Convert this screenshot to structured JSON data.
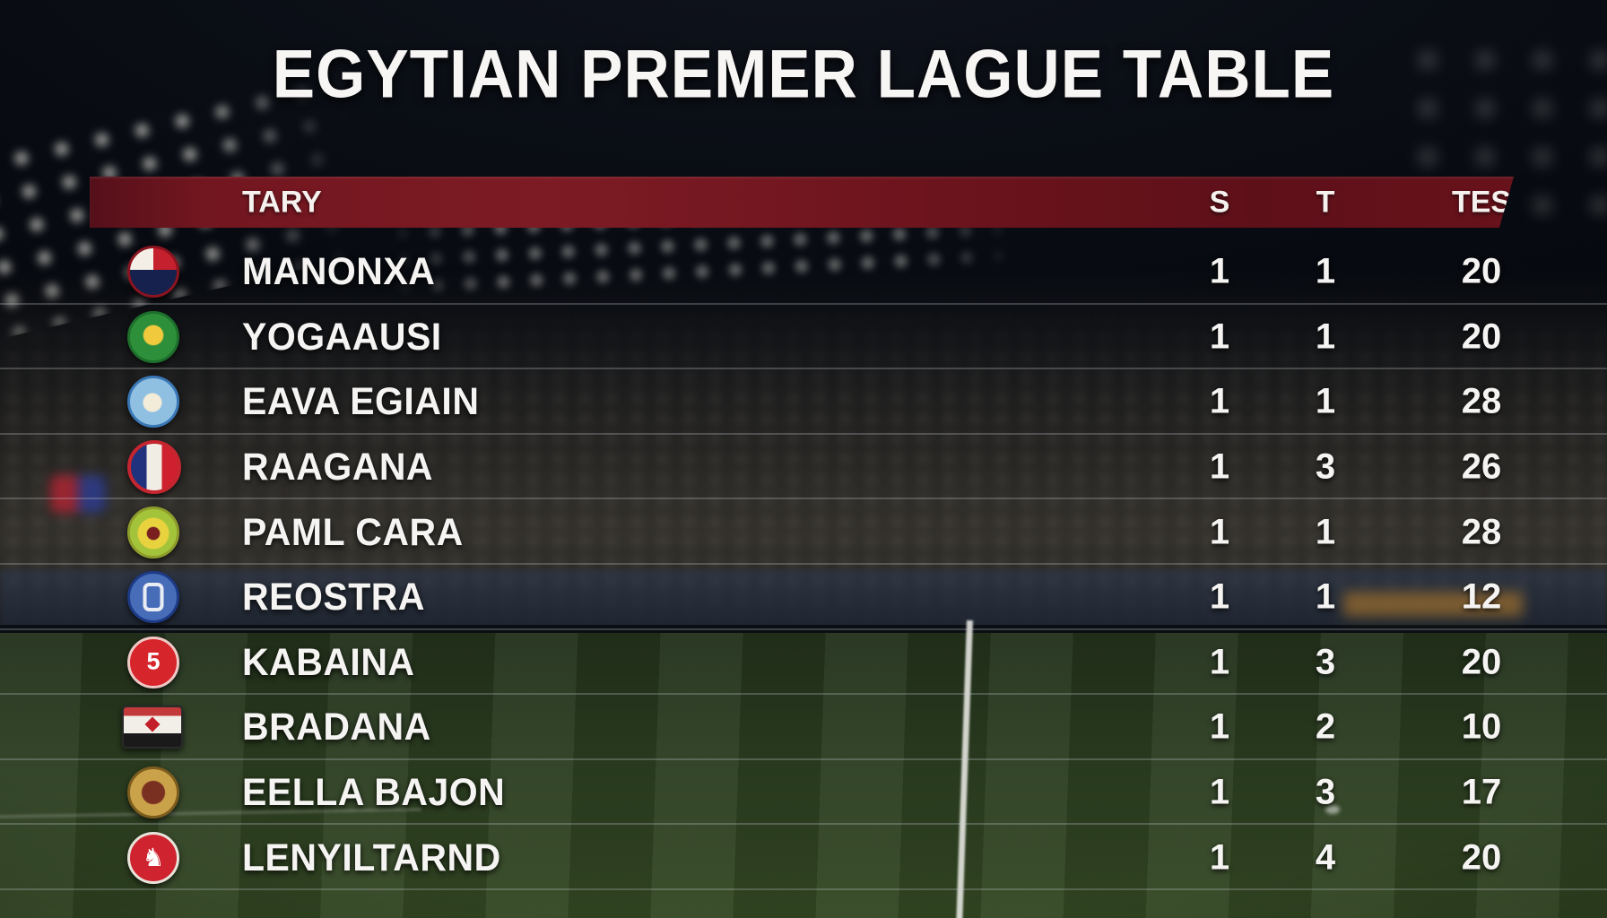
{
  "title": "EGYTIAN PREMER LAGUE TABLE",
  "table": {
    "headers": {
      "team": "TARY",
      "stat1": "S",
      "stat2": "T",
      "stat3": "TES"
    },
    "rows": [
      {
        "team": "MANONXA",
        "s": "1",
        "t": "1",
        "tes": "20",
        "badge": "red-white-navy-quartered-crest"
      },
      {
        "team": "YOGAAUSI",
        "s": "1",
        "t": "1",
        "tes": "20",
        "badge": "green-circle-yellow-center-crest"
      },
      {
        "team": "EAVA EGIAIN",
        "s": "1",
        "t": "1",
        "tes": "28",
        "badge": "light-blue-circle-crest"
      },
      {
        "team": "RAAGANA",
        "s": "1",
        "t": "3",
        "tes": "26",
        "badge": "red-ring-blue-white-red-tricolor-crest"
      },
      {
        "team": "PAML CARA",
        "s": "1",
        "t": "1",
        "tes": "28",
        "badge": "yellow-green-swirl-crest"
      },
      {
        "team": "REOSTRA",
        "s": "1",
        "t": "1",
        "tes": "12",
        "badge": "blue-circle-white-emblem-crest"
      },
      {
        "team": "KABAINA",
        "s": "1",
        "t": "3",
        "tes": "20",
        "badge": "red-circle-white-glyph-crest"
      },
      {
        "team": "BRADANA",
        "s": "1",
        "t": "2",
        "tes": "10",
        "badge": "red-white-black-flag-red-diamond"
      },
      {
        "team": "EELLA BAJON",
        "s": "1",
        "t": "3",
        "tes": "17",
        "badge": "gold-brown-circle-crest"
      },
      {
        "team": "LENYILTARND",
        "s": "1",
        "t": "4",
        "tes": "20",
        "badge": "red-circle-white-horse-crest"
      }
    ]
  },
  "chart_data": {
    "type": "table",
    "title": "EGYTIAN PREMER LAGUE TABLE",
    "columns": [
      "TARY",
      "S",
      "T",
      "TES"
    ],
    "rows": [
      [
        "MANONXA",
        1,
        1,
        20
      ],
      [
        "YOGAAUSI",
        1,
        1,
        20
      ],
      [
        "EAVA EGIAIN",
        1,
        1,
        28
      ],
      [
        "RAAGANA",
        1,
        3,
        26
      ],
      [
        "PAML CARA",
        1,
        1,
        28
      ],
      [
        "REOSTRA",
        1,
        1,
        12
      ],
      [
        "KABAINA",
        1,
        3,
        20
      ],
      [
        "BRADANA",
        1,
        2,
        10
      ],
      [
        "EELLA BAJON",
        1,
        3,
        17
      ],
      [
        "LENYILTARND",
        1,
        4,
        20
      ]
    ],
    "layout": {
      "header_background": "#6f161e",
      "text_color": "#ffffff",
      "background": "night stadium photo with pitch"
    }
  },
  "colors": {
    "header_bar_red": "#6f161e",
    "text_white": "#f5f4f2",
    "pitch_green": "#2b3d20",
    "separator": "rgba(205,210,215,0.26)"
  }
}
